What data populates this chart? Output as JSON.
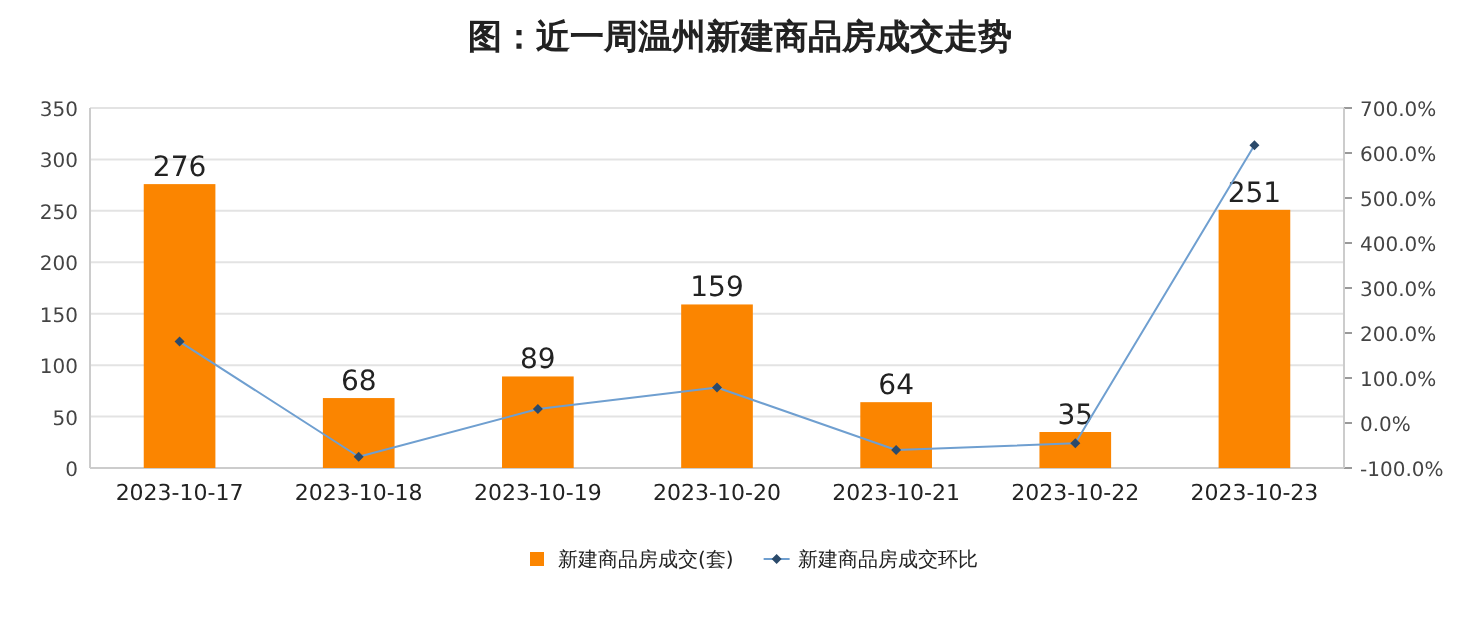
{
  "chart_data": {
    "type": "bar",
    "title": "图：近一周温州新建商品房成交走势",
    "categories": [
      "2023-10-17",
      "2023-10-18",
      "2023-10-19",
      "2023-10-20",
      "2023-10-21",
      "2023-10-22",
      "2023-10-23"
    ],
    "series": [
      {
        "name": "新建商品房成交(套)",
        "color": "#fb8500",
        "values": [
          276,
          68,
          89,
          159,
          64,
          35,
          251
        ],
        "value_labels": [
          "276",
          "68",
          "89",
          "159",
          "64",
          "35",
          "251"
        ]
      },
      {
        "name": "新建商品房成交环比",
        "type": "line",
        "axis": "y2",
        "color": "#6f9fd0",
        "marker": "diamond",
        "values": [
          181,
          -75,
          31,
          79,
          -60,
          -45,
          617
        ]
      }
    ],
    "ylim": [
      0,
      350
    ],
    "yticks": [
      0,
      50,
      100,
      150,
      200,
      250,
      300,
      350
    ],
    "y2lim": [
      -100,
      700
    ],
    "y2ticks": [
      {
        "value": -100,
        "label": "-100.0%"
      },
      {
        "value": 0,
        "label": "0.0%"
      },
      {
        "value": 100,
        "label": "100.0%"
      },
      {
        "value": 200,
        "label": "200.0%"
      },
      {
        "value": 300,
        "label": "300.0%"
      },
      {
        "value": 400,
        "label": "400.0%"
      },
      {
        "value": 500,
        "label": "500.0%"
      },
      {
        "value": 600,
        "label": "600.0%"
      },
      {
        "value": 700,
        "label": "700.0%"
      }
    ],
    "grid": "y",
    "legend": "bottom"
  }
}
